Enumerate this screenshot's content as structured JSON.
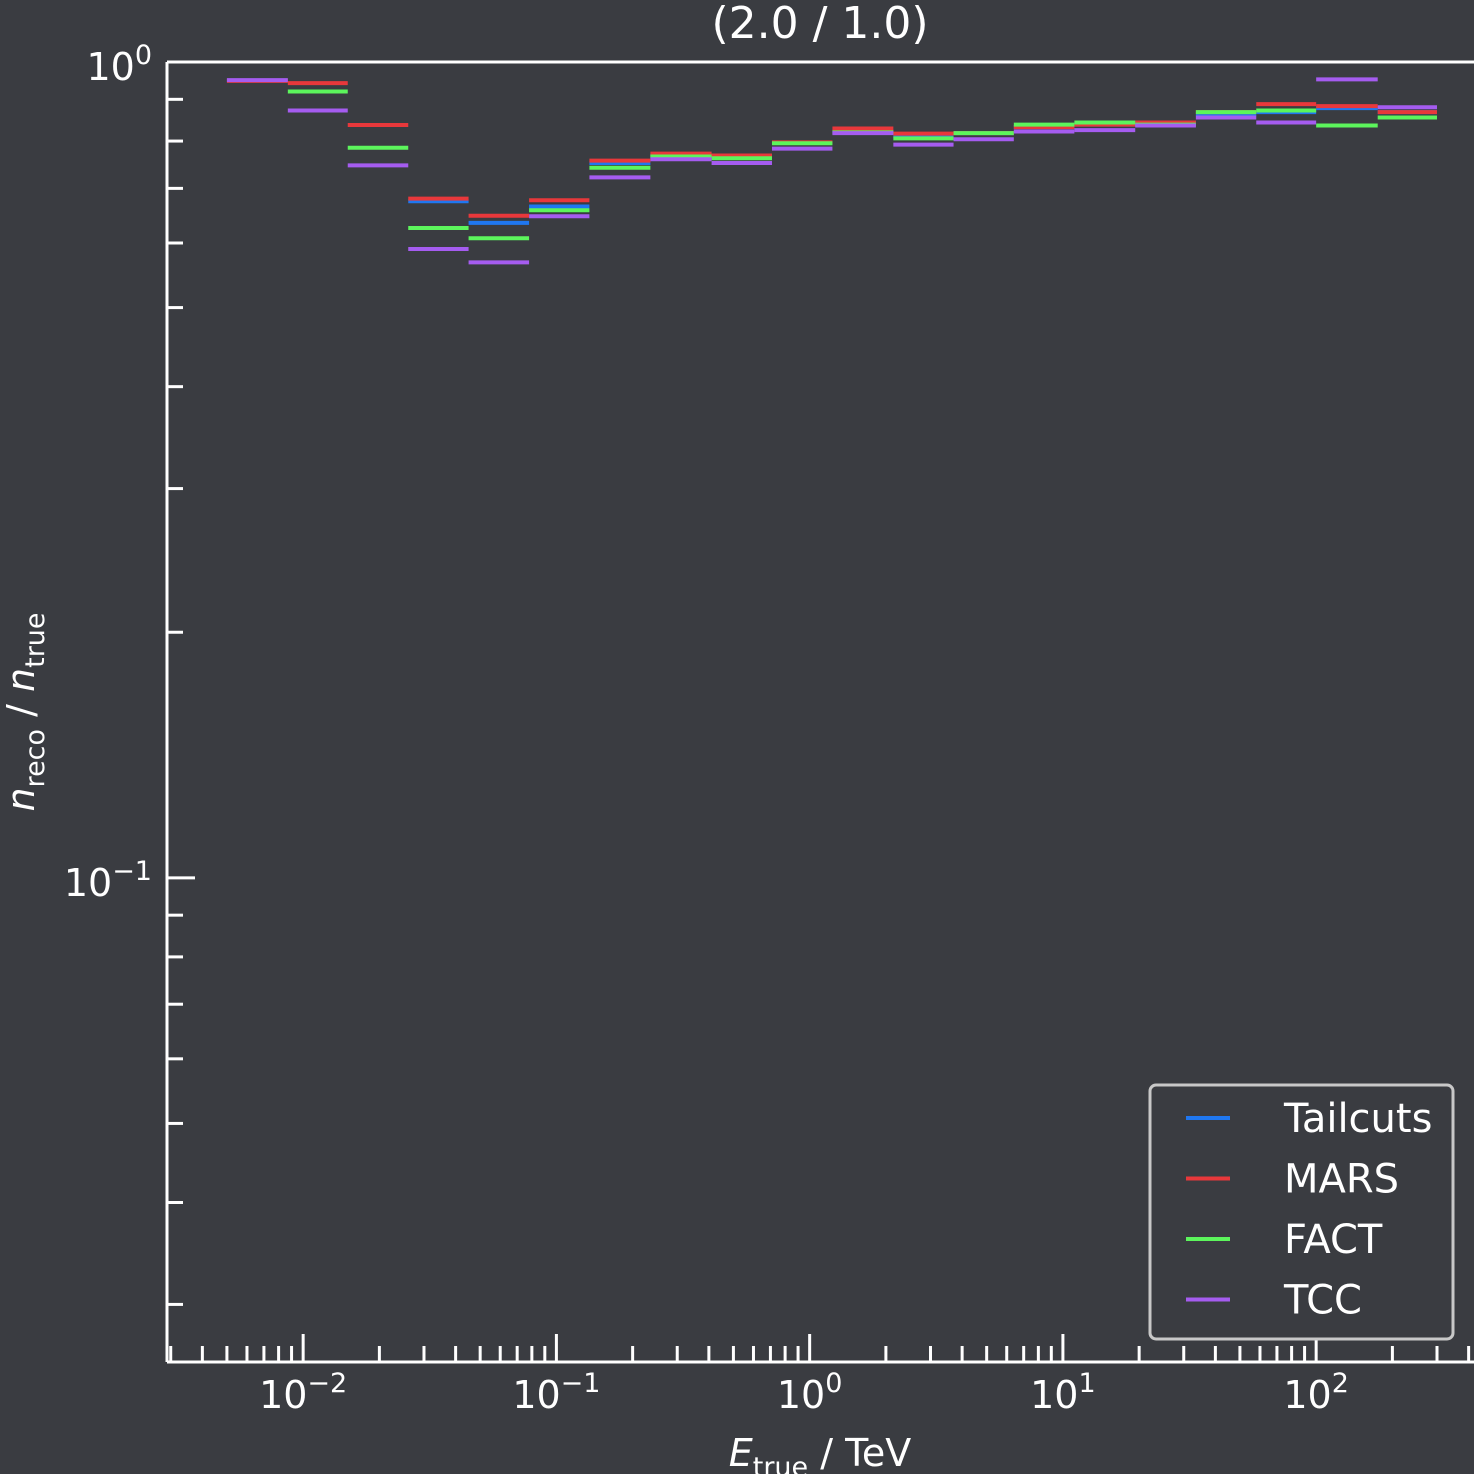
{
  "chart_data": {
    "type": "step",
    "title": "(2.0 / 1.0)",
    "xlabel": {
      "main": "E",
      "sub": "true",
      "suffix": " / TeV"
    },
    "ylabel": {
      "n1": "n",
      "sub1": "reco",
      "sep": " / ",
      "n2": "n",
      "sub2": "true"
    },
    "xscale": "log",
    "yscale": "log",
    "xlim": [
      0.0029,
      420
    ],
    "ylim": [
      0.0255,
      1.0
    ],
    "xticks": [
      {
        "value": 0.01,
        "base": "10",
        "exp": "−2"
      },
      {
        "value": 0.1,
        "base": "10",
        "exp": "−1"
      },
      {
        "value": 1,
        "base": "10",
        "exp": "0"
      },
      {
        "value": 10,
        "base": "10",
        "exp": "1"
      },
      {
        "value": 100,
        "base": "10",
        "exp": "2"
      }
    ],
    "yticks": [
      {
        "value": 1.0,
        "base": "10",
        "exp": "0"
      },
      {
        "value": 0.1,
        "base": "10",
        "exp": "−1"
      }
    ],
    "legend_position": "lower-right",
    "bin_edges": [
      0.005,
      0.0087,
      0.015,
      0.026,
      0.045,
      0.078,
      0.135,
      0.235,
      0.41,
      0.71,
      1.23,
      2.14,
      3.7,
      6.4,
      11.1,
      19.3,
      33.5,
      58,
      100,
      175,
      300
    ],
    "series": [
      {
        "name": "Tailcuts",
        "color": "#1f77f0",
        "values": [
          null,
          null,
          null,
          0.675,
          0.635,
          0.665,
          0.752,
          0.768,
          0.768,
          0.796,
          0.822,
          0.812,
          0.818,
          0.832,
          0.838,
          0.843,
          0.863,
          0.868,
          0.878,
          0.868
        ]
      },
      {
        "name": "MARS",
        "color": "#e8383b",
        "values": [
          0.948,
          0.942,
          0.837,
          0.68,
          0.648,
          0.677,
          0.757,
          0.772,
          0.768,
          0.797,
          0.829,
          0.817,
          0.818,
          0.832,
          0.838,
          0.843,
          0.868,
          0.888,
          0.883,
          0.868
        ]
      },
      {
        "name": "FACT",
        "color": "#5cf55c",
        "values": [
          null,
          0.92,
          0.785,
          0.626,
          0.608,
          0.658,
          0.742,
          0.766,
          0.762,
          0.795,
          0.82,
          0.806,
          0.818,
          0.838,
          0.843,
          0.838,
          0.868,
          0.872,
          0.836,
          0.855
        ]
      },
      {
        "name": "TCC",
        "color": "#a55cf0",
        "values": [
          0.95,
          0.872,
          0.747,
          0.59,
          0.568,
          0.647,
          0.722,
          0.76,
          0.752,
          0.783,
          0.818,
          0.792,
          0.804,
          0.822,
          0.825,
          0.836,
          0.855,
          0.843,
          0.952,
          0.88
        ]
      }
    ]
  }
}
